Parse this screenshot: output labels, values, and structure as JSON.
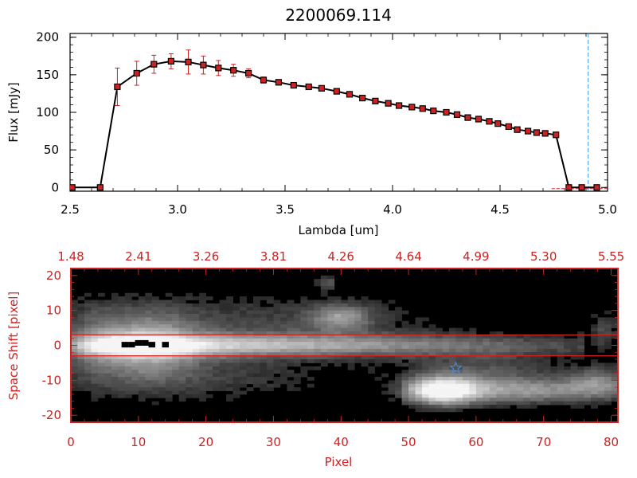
{
  "chart_data": [
    {
      "type": "line",
      "title": "2200069.114",
      "xlabel": "Lambda [um]",
      "ylabel": "Flux [mJy]",
      "xlim": [
        2.5,
        5.0
      ],
      "ylim": [
        -5,
        205
      ],
      "x_ticks": [
        "2.5",
        "3.0",
        "3.5",
        "4.0",
        "4.5",
        "5.0"
      ],
      "y_ticks": [
        "0",
        "50",
        "100",
        "150",
        "200"
      ],
      "x_tick_values": [
        2.5,
        3.0,
        3.5,
        4.0,
        4.5,
        5.0
      ],
      "y_tick_values": [
        0,
        50,
        100,
        150,
        200
      ],
      "series_color": "#000000",
      "marker_color": "#cc2222",
      "errorbar_color": "#cc2222",
      "vline_color": "#3399dd",
      "vline_x": 4.91,
      "x": [
        2.51,
        2.64,
        2.72,
        2.81,
        2.89,
        2.97,
        3.05,
        3.12,
        3.19,
        3.26,
        3.33,
        3.4,
        3.47,
        3.54,
        3.61,
        3.67,
        3.74,
        3.8,
        3.86,
        3.92,
        3.98,
        4.03,
        4.09,
        4.14,
        4.19,
        4.25,
        4.3,
        4.35,
        4.4,
        4.45,
        4.49,
        4.54,
        4.58,
        4.63,
        4.67,
        4.71,
        4.76,
        4.82,
        4.88,
        4.95
      ],
      "y": [
        0,
        0,
        134,
        152,
        164,
        168,
        167,
        163,
        159,
        156,
        152,
        143,
        140,
        136,
        134,
        132,
        128,
        124,
        119,
        115,
        112,
        109,
        107,
        105,
        102,
        100,
        97,
        93,
        91,
        88,
        85,
        81,
        77,
        75,
        73,
        72,
        70,
        0,
        0,
        0
      ],
      "yerr": [
        0,
        0,
        25,
        16,
        12,
        10,
        16,
        12,
        10,
        8,
        6,
        4,
        3,
        3,
        3,
        3,
        3,
        3,
        3,
        3,
        3,
        3,
        3,
        3,
        3,
        3,
        3,
        3,
        3,
        3,
        3,
        3,
        3,
        3,
        3,
        3,
        3,
        0,
        0,
        0
      ]
    },
    {
      "type": "heatmap",
      "xlabel": "Pixel",
      "ylabel": "Space Shift [pixel]",
      "xlim": [
        0,
        81
      ],
      "ylim": [
        -22,
        22
      ],
      "x_ticks": [
        "0",
        "10",
        "20",
        "30",
        "40",
        "50",
        "60",
        "70",
        "80"
      ],
      "y_ticks": [
        "20",
        "10",
        "0",
        "-10",
        "-20"
      ],
      "x_tick_values": [
        0,
        10,
        20,
        30,
        40,
        50,
        60,
        70,
        80
      ],
      "y_tick_values": [
        20,
        10,
        0,
        -10,
        -20
      ],
      "top_axis_ticks": [
        "1.48",
        "2.41",
        "3.26",
        "3.81",
        "4.26",
        "4.64",
        "4.99",
        "5.30",
        "5.55"
      ],
      "axis_color": "#cc2222",
      "aperture_lines_y": [
        3,
        -3
      ],
      "star_marker": {
        "x": 57,
        "y": -6.5,
        "color": "#4488dd"
      },
      "background": "#000000"
    }
  ]
}
